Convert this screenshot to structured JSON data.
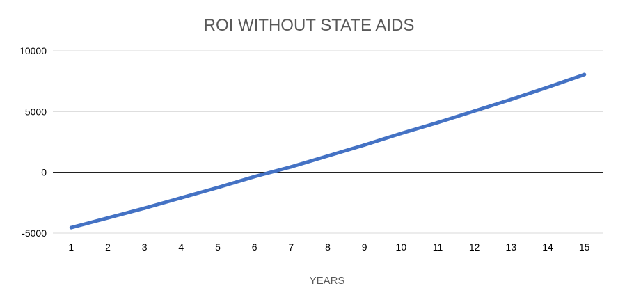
{
  "chart_data": {
    "type": "line",
    "title": "ROI WITHOUT STATE AIDS",
    "xlabel": "YEARS",
    "ylabel": "",
    "categories": [
      "1",
      "2",
      "3",
      "4",
      "5",
      "6",
      "7",
      "8",
      "9",
      "10",
      "11",
      "12",
      "13",
      "14",
      "15"
    ],
    "series": [
      {
        "values": [
          -4550,
          -3750,
          -2950,
          -2100,
          -1250,
          -350,
          450,
          1350,
          2250,
          3200,
          4100,
          5050,
          6000,
          7000,
          8050
        ],
        "color": "#4472c4"
      }
    ],
    "ylim": [
      -5000,
      10000
    ],
    "yticks": [
      "10000",
      "5000",
      "0",
      "-5000"
    ],
    "grid": true,
    "legend": "none",
    "colors": {
      "gridline": "#d9d9d9",
      "zero_line": "#000000"
    }
  }
}
